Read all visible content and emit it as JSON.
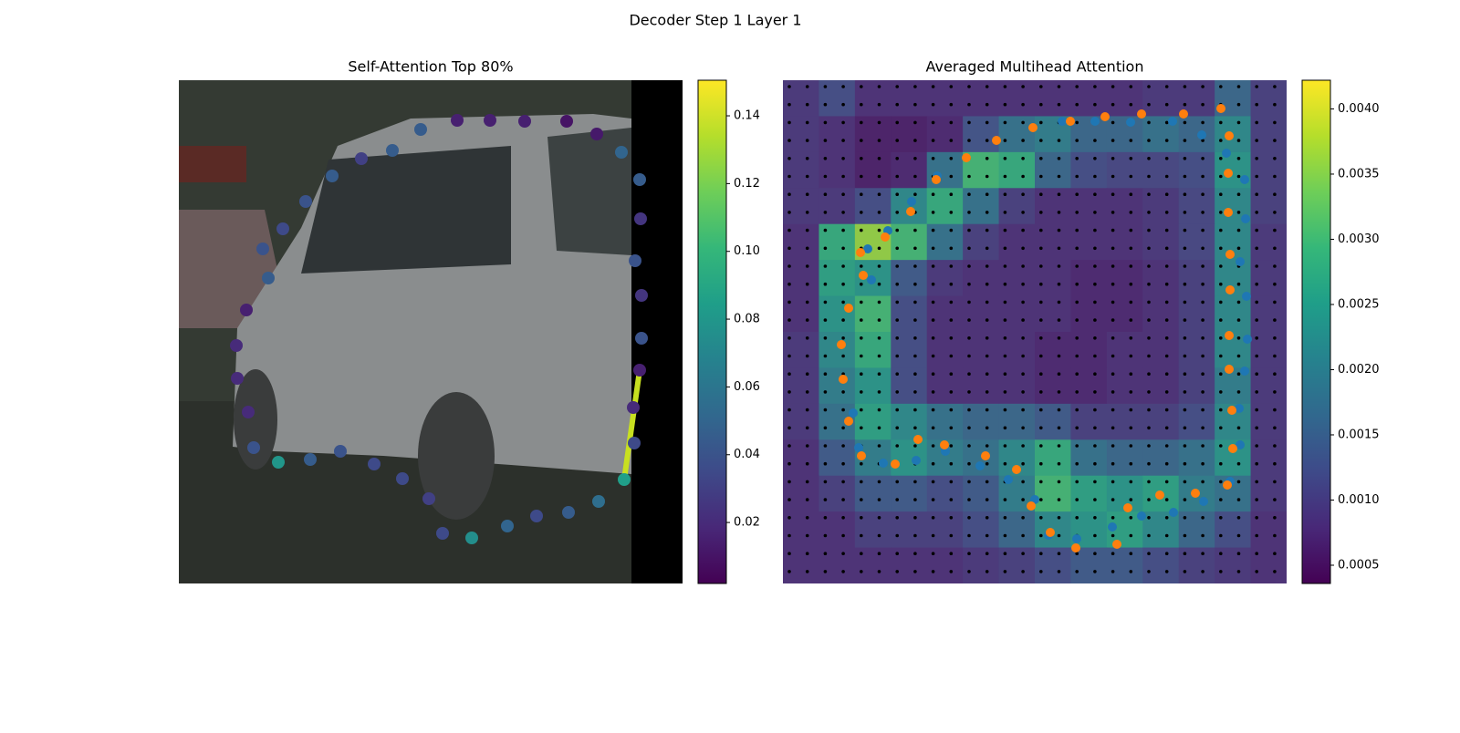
{
  "title": "Decoder Step 1 Layer 1",
  "chart_data": [
    {
      "type": "scatter",
      "title": "Self-Attention Top 80%",
      "cmap": "viridis",
      "xlim": [
        0,
        552
      ],
      "ylim": [
        552,
        0
      ],
      "x": [
        305,
        341,
        379,
        425,
        458,
        485,
        505,
        506,
        500,
        507,
        507,
        505,
        498,
        499,
        488,
        460,
        427,
        392,
        360,
        321,
        289,
        274,
        245,
        214,
        177,
        144,
        109,
        82,
        76,
        64,
        63,
        74,
        98,
        92,
        114,
        139,
        168,
        200,
        234,
        265
      ],
      "y": [
        44,
        44,
        45,
        45,
        59,
        79,
        109,
        152,
        198,
        236,
        283,
        318,
        359,
        398,
        438,
        462,
        474,
        478,
        489,
        502,
        497,
        459,
        437,
        421,
        407,
        416,
        419,
        403,
        364,
        327,
        291,
        252,
        217,
        185,
        163,
        133,
        105,
        86,
        77,
        54
      ],
      "values": [
        0.015,
        0.015,
        0.015,
        0.01,
        0.012,
        0.05,
        0.045,
        0.025,
        0.04,
        0.025,
        0.04,
        0.015,
        0.02,
        0.035,
        0.085,
        0.055,
        0.045,
        0.035,
        0.05,
        0.075,
        0.035,
        0.03,
        0.035,
        0.035,
        0.04,
        0.045,
        0.08,
        0.04,
        0.02,
        0.02,
        0.02,
        0.015,
        0.045,
        0.04,
        0.035,
        0.04,
        0.045,
        0.03,
        0.045,
        0.045
      ],
      "clim": [
        0.002,
        0.1505
      ],
      "cticks": [
        {
          "value": 0.02,
          "label": "0.02"
        },
        {
          "value": 0.04,
          "label": "0.04"
        },
        {
          "value": 0.06,
          "label": "0.06"
        },
        {
          "value": 0.08,
          "label": "0.08"
        },
        {
          "value": 0.1,
          "label": "0.10"
        },
        {
          "value": 0.12,
          "label": "0.12"
        },
        {
          "value": 0.14,
          "label": "0.14"
        }
      ]
    },
    {
      "type": "heatmap",
      "title": "Averaged Multihead Attention",
      "cmap": "viridis",
      "xlim": [
        0,
        552
      ],
      "ylim": [
        552,
        0
      ],
      "z": [
        [
          0.0009,
          0.0012,
          0.0008,
          0.0008,
          0.0008,
          0.0008,
          0.0008,
          0.0008,
          0.0008,
          0.0008,
          0.0009,
          0.0009,
          0.0016,
          0.001
        ],
        [
          0.0009,
          0.0008,
          0.0006,
          0.0006,
          0.0007,
          0.0013,
          0.0018,
          0.002,
          0.0016,
          0.0016,
          0.0018,
          0.0016,
          0.0022,
          0.001
        ],
        [
          0.0009,
          0.0008,
          0.0006,
          0.0007,
          0.0018,
          0.003,
          0.0028,
          0.0016,
          0.0012,
          0.0011,
          0.0011,
          0.0012,
          0.0024,
          0.001
        ],
        [
          0.0009,
          0.0009,
          0.0012,
          0.0022,
          0.0028,
          0.0018,
          0.001,
          0.0008,
          0.0008,
          0.0008,
          0.0009,
          0.0011,
          0.0022,
          0.001
        ],
        [
          0.0008,
          0.0028,
          0.0036,
          0.003,
          0.0018,
          0.001,
          0.0008,
          0.0008,
          0.0008,
          0.0008,
          0.0009,
          0.0011,
          0.0022,
          0.0009
        ],
        [
          0.0008,
          0.0026,
          0.0024,
          0.0014,
          0.0009,
          0.0008,
          0.0008,
          0.0008,
          0.0007,
          0.0007,
          0.0008,
          0.001,
          0.0022,
          0.0009
        ],
        [
          0.0008,
          0.0024,
          0.003,
          0.0012,
          0.0008,
          0.0008,
          0.0008,
          0.0008,
          0.0007,
          0.0007,
          0.0008,
          0.001,
          0.0022,
          0.0009
        ],
        [
          0.0009,
          0.0022,
          0.0028,
          0.0012,
          0.0008,
          0.0008,
          0.0008,
          0.0007,
          0.0007,
          0.0008,
          0.0008,
          0.001,
          0.0022,
          0.0009
        ],
        [
          0.0009,
          0.002,
          0.0024,
          0.0012,
          0.0008,
          0.0008,
          0.0008,
          0.0007,
          0.0007,
          0.0008,
          0.0008,
          0.001,
          0.002,
          0.0009
        ],
        [
          0.0009,
          0.0018,
          0.0026,
          0.0022,
          0.0018,
          0.0016,
          0.0016,
          0.0014,
          0.001,
          0.001,
          0.001,
          0.0012,
          0.0022,
          0.0009
        ],
        [
          0.0008,
          0.0014,
          0.002,
          0.0024,
          0.002,
          0.0018,
          0.0022,
          0.0028,
          0.0018,
          0.0016,
          0.0016,
          0.0018,
          0.0024,
          0.0009
        ],
        [
          0.0008,
          0.001,
          0.0014,
          0.0014,
          0.0012,
          0.0014,
          0.002,
          0.003,
          0.0026,
          0.0024,
          0.0026,
          0.002,
          0.0018,
          0.0009
        ],
        [
          0.0008,
          0.0008,
          0.001,
          0.001,
          0.001,
          0.0012,
          0.0016,
          0.0022,
          0.0024,
          0.0026,
          0.0022,
          0.0016,
          0.0012,
          0.0008
        ],
        [
          0.0008,
          0.0008,
          0.0008,
          0.0008,
          0.0008,
          0.0009,
          0.001,
          0.0012,
          0.0014,
          0.0014,
          0.0012,
          0.001,
          0.0009,
          0.0008
        ]
      ],
      "clim": [
        0.00036,
        0.00422
      ],
      "cticks": [
        {
          "value": 0.0005,
          "label": "0.0005"
        },
        {
          "value": 0.001,
          "label": "0.0010"
        },
        {
          "value": 0.0015,
          "label": "0.0015"
        },
        {
          "value": 0.002,
          "label": "0.0020"
        },
        {
          "value": 0.0025,
          "label": "0.0025"
        },
        {
          "value": 0.003,
          "label": "0.0030"
        },
        {
          "value": 0.0035,
          "label": "0.0035"
        },
        {
          "value": 0.004,
          "label": "0.0040"
        }
      ],
      "series": [
        {
          "color": "#1f77b4",
          "x": [
            306,
            342,
            381,
            427,
            459,
            486,
            506,
            507,
            501,
            508,
            509,
            506,
            500,
            501,
            490,
            461,
            428,
            393,
            361,
            322,
            291,
            276,
            247,
            216,
            178,
            146,
            110,
            83,
            77,
            97,
            93,
            115,
            141,
            169
          ],
          "y": [
            45,
            45,
            46,
            45,
            60,
            80,
            109,
            152,
            199,
            237,
            284,
            319,
            360,
            400,
            440,
            462,
            474,
            478,
            490,
            503,
            499,
            460,
            438,
            423,
            407,
            417,
            420,
            403,
            365,
            219,
            185,
            165,
            133,
            105
          ]
        },
        {
          "color": "#ff7f0e",
          "x": [
            274,
            315,
            353,
            393,
            439,
            480,
            489,
            488,
            488,
            490,
            490,
            489,
            489,
            492,
            493,
            487,
            452,
            413,
            378,
            366,
            321,
            293,
            272,
            256,
            222,
            177,
            148,
            123,
            86,
            72,
            66,
            64,
            72,
            88,
            85,
            112,
            140,
            168,
            201,
            234
          ],
          "y": [
            52,
            45,
            40,
            37,
            37,
            31,
            61,
            102,
            145,
            191,
            230,
            280,
            317,
            362,
            404,
            444,
            453,
            455,
            469,
            509,
            513,
            496,
            467,
            427,
            412,
            400,
            394,
            421,
            412,
            374,
            328,
            290,
            250,
            214,
            189,
            172,
            144,
            109,
            85,
            66
          ]
        }
      ]
    }
  ]
}
